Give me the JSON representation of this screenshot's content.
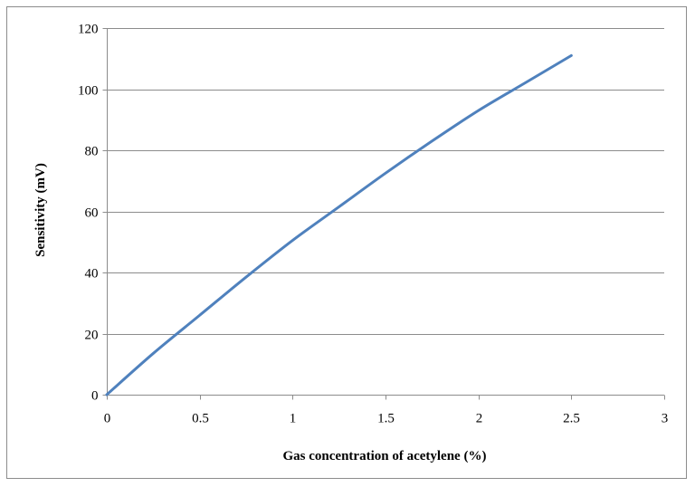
{
  "chart_data": {
    "type": "line",
    "title": "",
    "xlabel": "Gas concentration of acetylene (%)",
    "ylabel": "Sensitivity (mV)",
    "xlim": [
      0,
      3
    ],
    "ylim": [
      0,
      120
    ],
    "xticks": [
      0,
      0.5,
      1,
      1.5,
      2,
      2.5,
      3
    ],
    "xtick_labels": [
      "0",
      "0.5",
      "1",
      "1.5",
      "2",
      "2.5",
      "3"
    ],
    "yticks": [
      0,
      20,
      40,
      60,
      80,
      100,
      120
    ],
    "ytick_labels": [
      "0",
      "20",
      "40",
      "60",
      "80",
      "100",
      "120"
    ],
    "grid": "horizontal",
    "legend": "none",
    "series": [
      {
        "color": "#4f81bd",
        "x": [
          0,
          0.25,
          0.5,
          0.75,
          1,
          1.25,
          1.5,
          1.75,
          2,
          2.25,
          2.5
        ],
        "y": [
          0,
          13.5,
          26,
          38.5,
          50.5,
          61.5,
          72.5,
          83,
          93,
          102,
          111
        ]
      }
    ]
  }
}
